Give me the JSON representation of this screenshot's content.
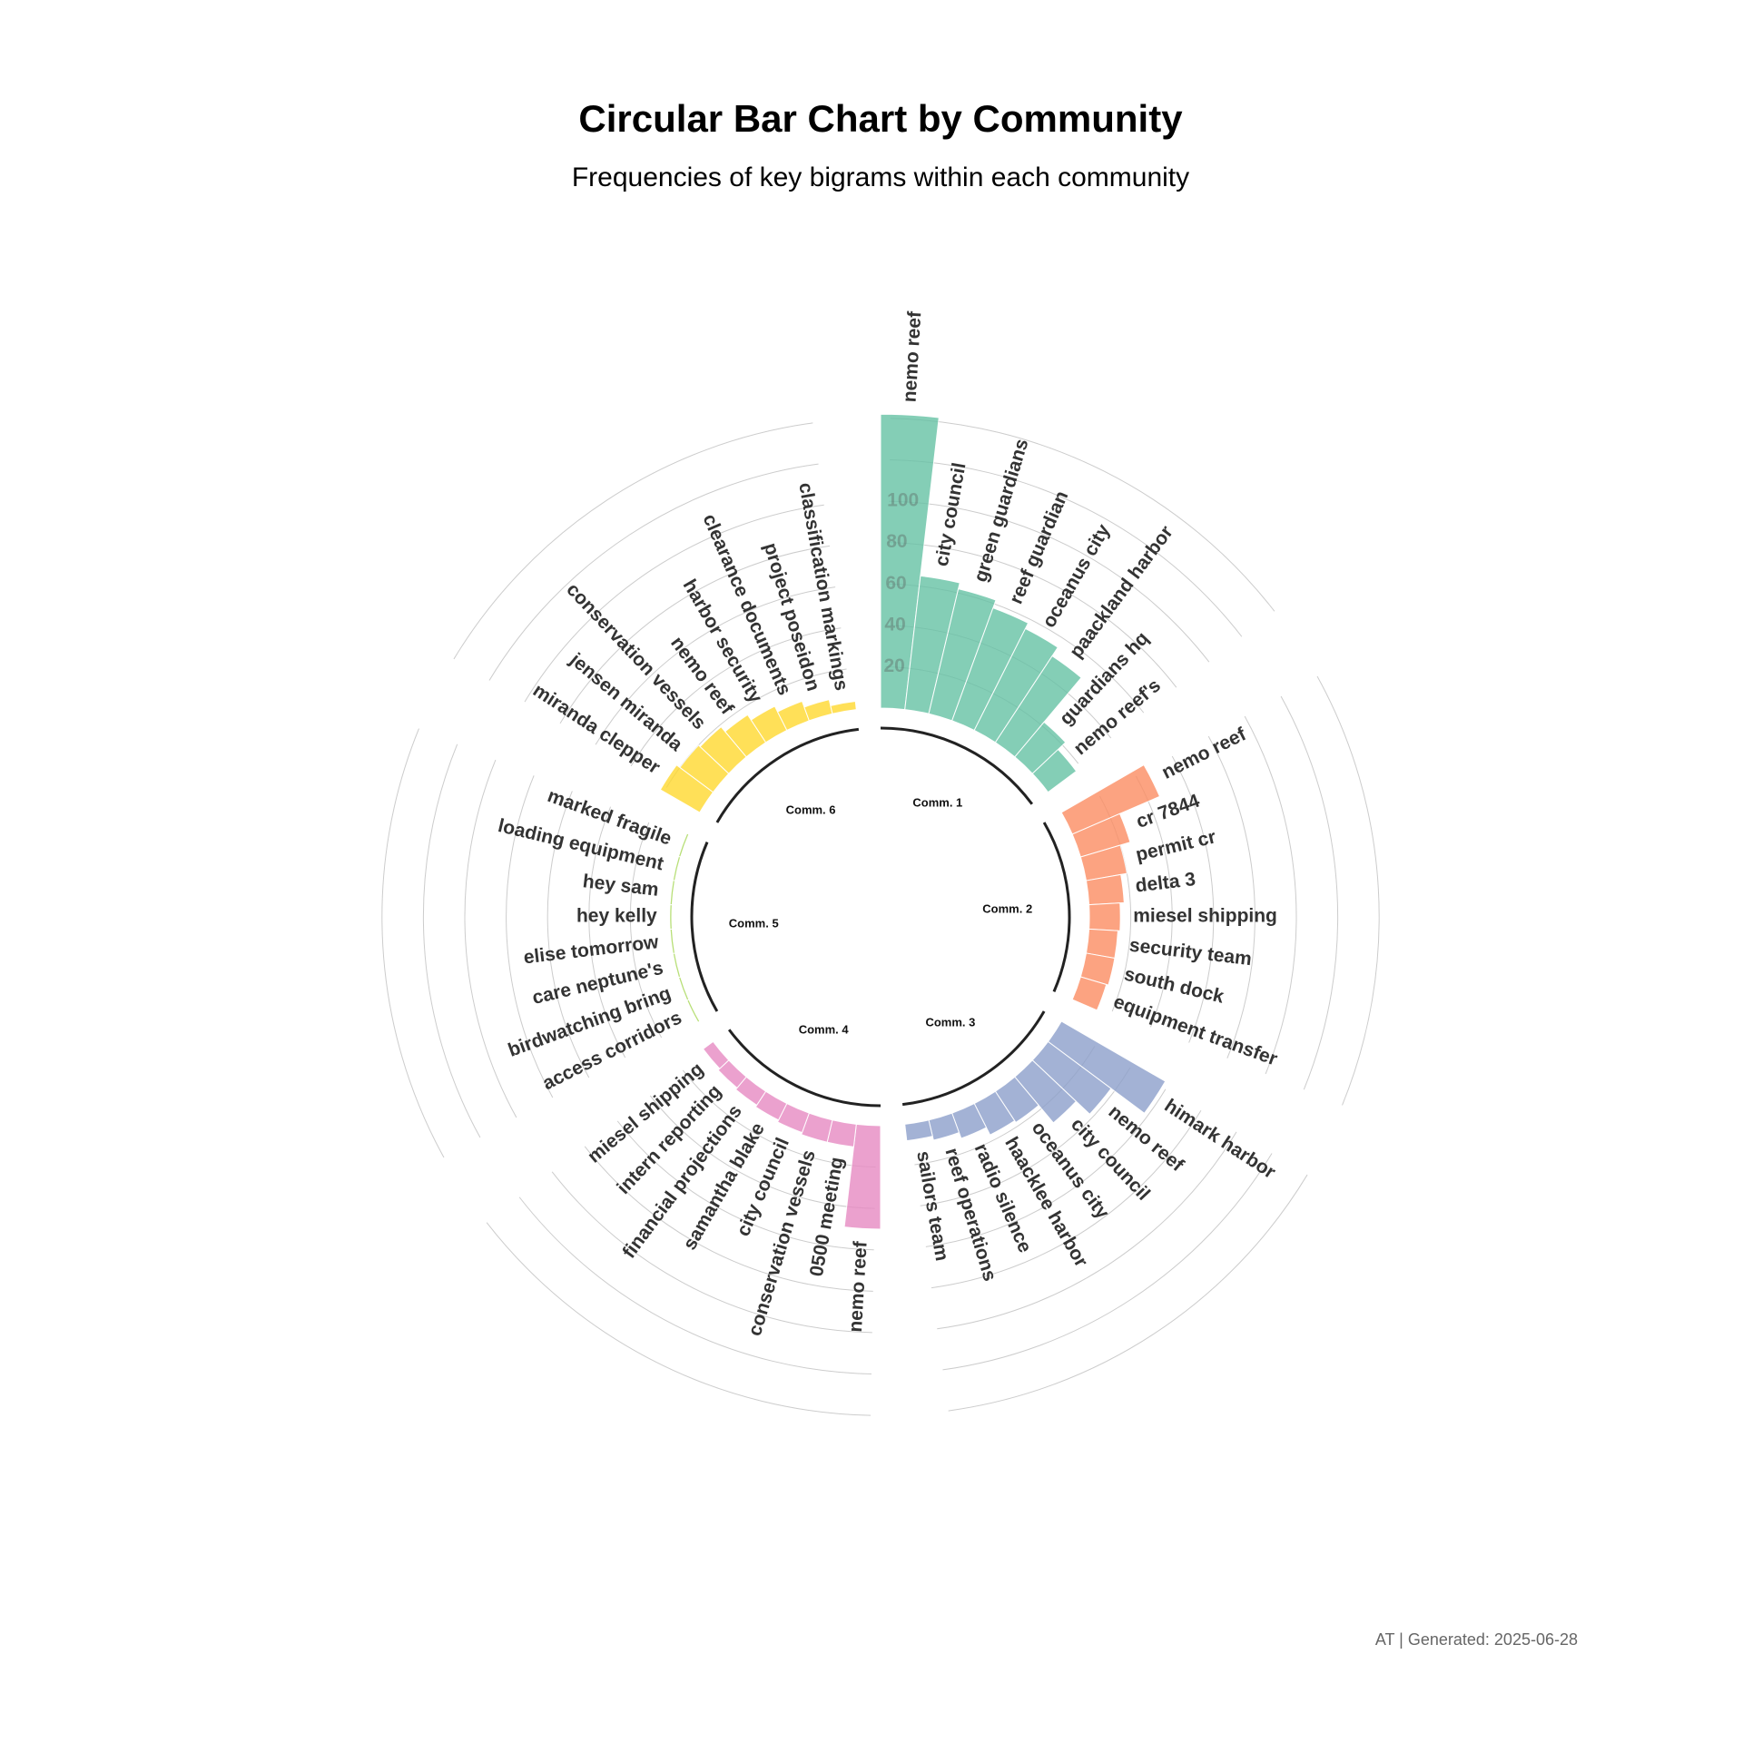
{
  "chart_data": {
    "type": "bar",
    "polar": true,
    "title": "Circular Bar Chart by Community",
    "subtitle": "Frequencies of key bigrams within each community",
    "caption": "AT | Generated: 2025-06-28",
    "ylim": [
      0,
      150
    ],
    "y_ticks": [
      20,
      40,
      60,
      80,
      100
    ],
    "groups": [
      {
        "name": "Comm. 1",
        "color": "#66C2A5",
        "categories": [
          "nemo reef",
          "city council",
          "green guardians",
          "reef guardian",
          "oceanus city",
          "paackland harbor",
          "guardians hq",
          "nemo reef's"
        ],
        "values": [
          142,
          65,
          62,
          58,
          55,
          50,
          22,
          17
        ]
      },
      {
        "name": "Comm. 2",
        "color": "#FC8D62",
        "categories": [
          "nemo reef",
          "cr 7844",
          "permit cr",
          "delta 3",
          "miesel shipping",
          "security team",
          "south dock",
          "equipment transfer"
        ],
        "values": [
          46,
          25,
          20,
          17,
          15,
          14,
          14,
          13
        ]
      },
      {
        "name": "Comm. 3",
        "color": "#8DA0CB",
        "categories": [
          "himark harbor",
          "nemo reef",
          "city council",
          "oceanus city",
          "haacklee harbor",
          "radio silence",
          "reef operations",
          "sailors team"
        ],
        "values": [
          58,
          38,
          29,
          18,
          17,
          13,
          10,
          8
        ]
      },
      {
        "name": "Comm. 4",
        "color": "#E78AC3",
        "categories": [
          "nemo reef",
          "0500 meeting",
          "conservation vessels",
          "city council",
          "samantha blake",
          "financial projections",
          "intern reporting",
          "miesel shipping"
        ],
        "values": [
          50,
          11,
          11,
          10,
          9,
          8,
          7,
          6
        ]
      },
      {
        "name": "Comm. 5",
        "color": "#A6D854",
        "categories": [
          "access corridors",
          "birdwatching bring",
          "care neptune's",
          "elise tomorrow",
          "hey kelly",
          "hey sam",
          "loading equipment",
          "marked fragile"
        ],
        "values": [
          1,
          1,
          1,
          1,
          1,
          1,
          1,
          1
        ]
      },
      {
        "name": "Comm. 6",
        "color": "#FFD92F",
        "categories": [
          "miranda clepper",
          "jensen miranda",
          "conservation vessels",
          "nemo reef",
          "harbor security",
          "clearance documents",
          "project poseidon",
          "classification markings"
        ],
        "values": [
          22,
          20,
          19,
          16,
          13,
          10,
          7,
          4
        ]
      }
    ]
  }
}
